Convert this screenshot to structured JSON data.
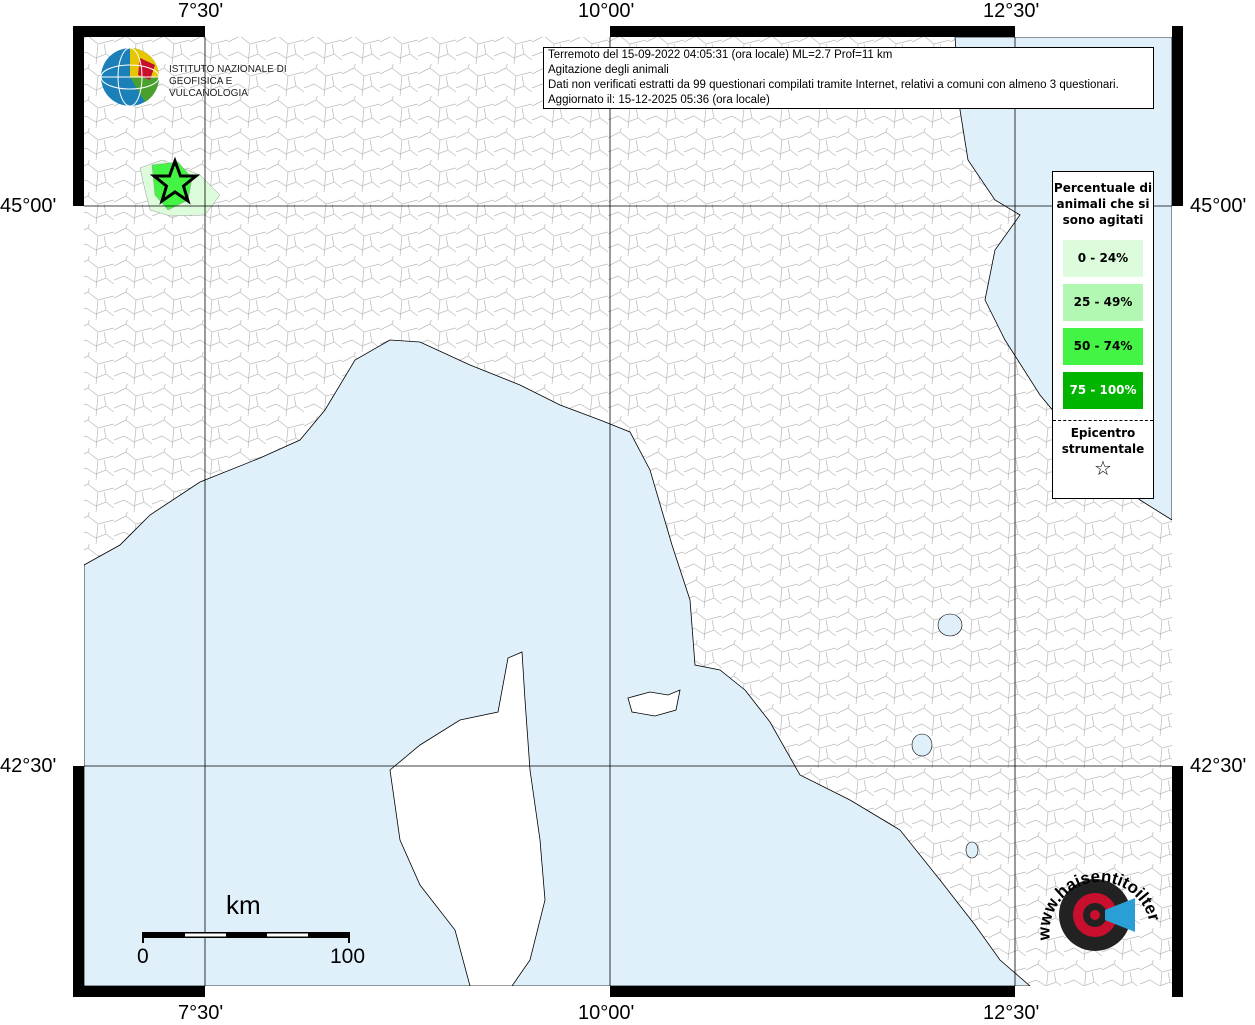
{
  "map": {
    "info_box": {
      "line1": "Terremoto del 15-09-2022 04:05:31 (ora locale) ML=2.7 Prof=11 km",
      "line2": "Agitazione degli animali",
      "line3": "Dati non verificati estratti da 99 questionari compilati tramite Internet, relativi a comuni con almeno 3 questionari.",
      "line4": "Aggiornato il: 15-12-2025 05:36 (ora locale)"
    },
    "lon_ticks": [
      "7°30'",
      "10°00'",
      "12°30'"
    ],
    "lat_ticks": [
      "45°00'",
      "42°30'"
    ],
    "legend": {
      "title": "Percentuale di animali che si sono agitati",
      "classes": [
        {
          "label": "0 - 24%",
          "color": "#dcfcdc"
        },
        {
          "label": "25 - 49%",
          "color": "#b2f8b2"
        },
        {
          "label": "50 - 74%",
          "color": "#44f444"
        },
        {
          "label": "75 - 100%",
          "color": "#00b400"
        }
      ],
      "epicenter_label": "Epicentro strumentale",
      "epicenter_symbol": "☆"
    },
    "scale": {
      "unit": "km",
      "min": "0",
      "max": "100"
    },
    "logo_ingv": "ISTITUTO NAZIONALE DI GEOFISICA E VULCANOLOGIA",
    "logo_hsit": "www.haisentitoilterremoto.it ?",
    "colors": {
      "sea": "#e0f0fb",
      "land": "#ffffff",
      "border": "#b0b0b0"
    }
  }
}
